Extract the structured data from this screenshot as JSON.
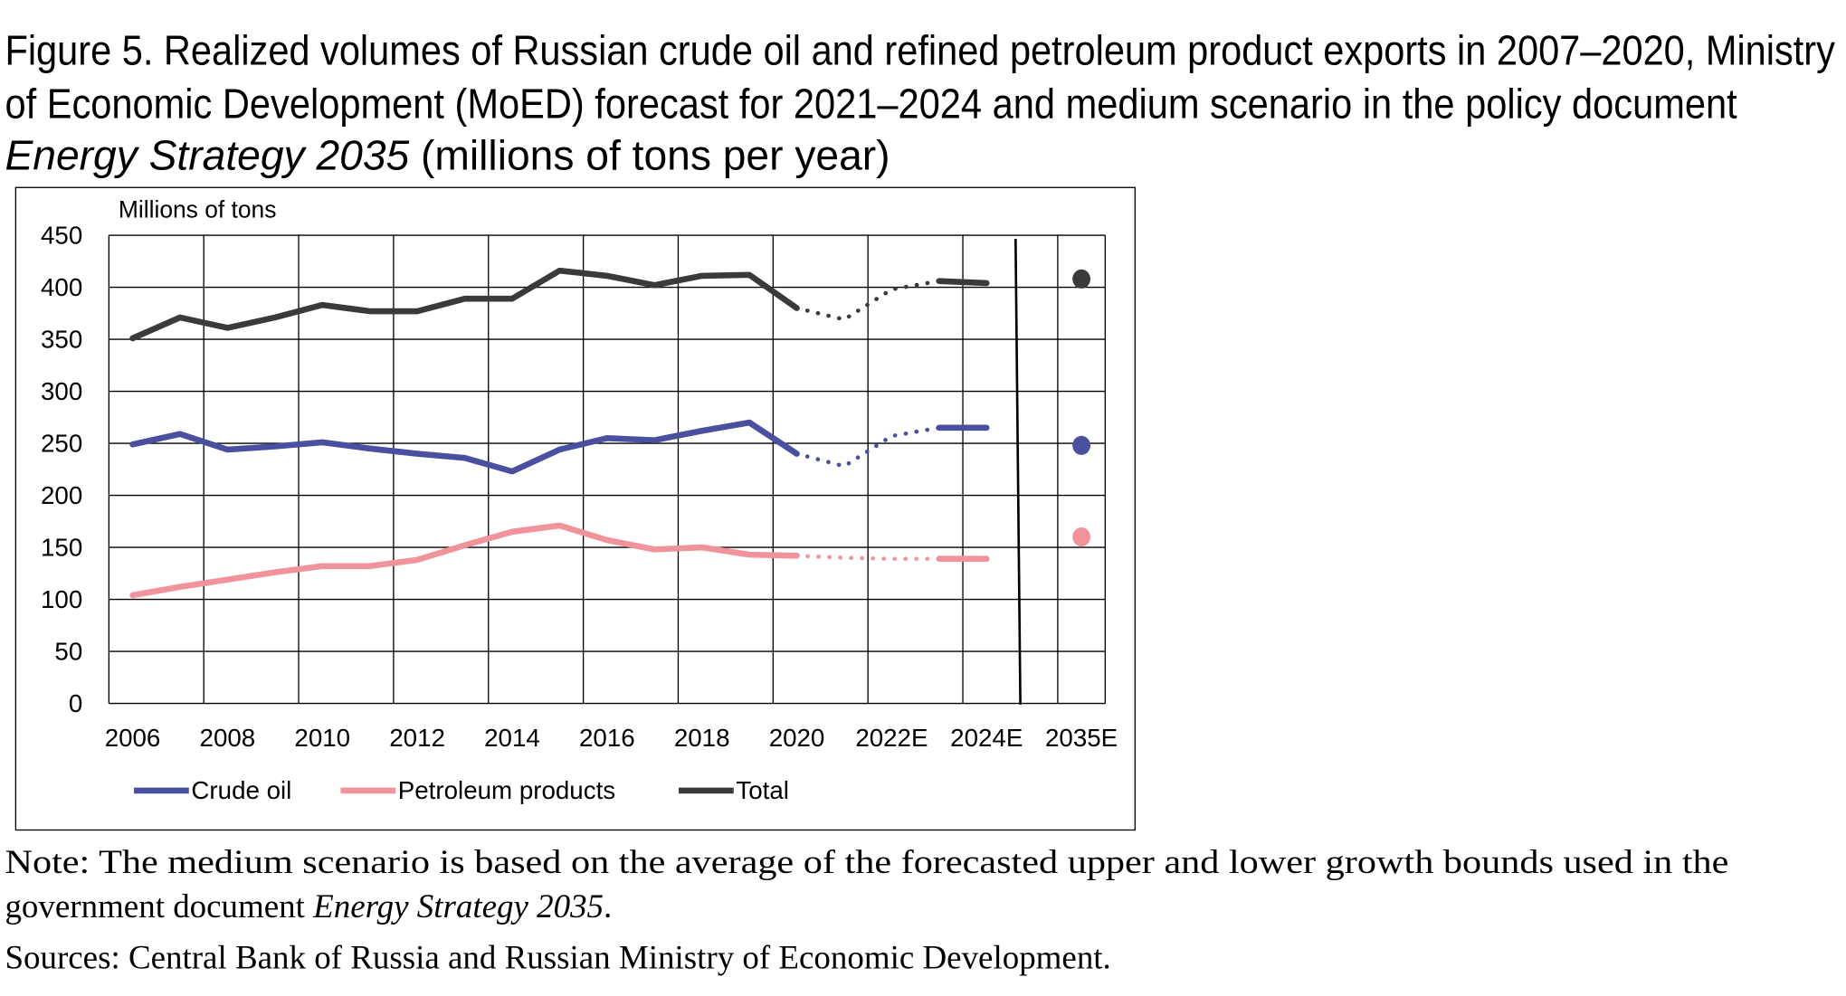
{
  "title": {
    "line1": "Figure 5. Realized volumes of Russian crude oil and refined petroleum product exports in 2007–2020, Ministry",
    "line2": "of Economic Development (MoED) forecast for 2021–2024 and medium scenario in the policy document",
    "line3_italic": "Energy Strategy 2035",
    "line3_rest": " (millions of tons per year)"
  },
  "notes": {
    "note_line1": "Note: The medium scenario is based on the average of the forecasted upper and lower growth bounds used in the",
    "note_line2_a": "government document ",
    "note_line2_italic": "Energy Strategy 2035",
    "note_line2_b": ".",
    "sources": "Sources: Central Bank of Russia and Russian Ministry of Economic Development."
  },
  "chart_data": {
    "type": "line",
    "ylabel": "Millions of tons",
    "ylim": [
      0,
      450
    ],
    "yticks": [
      "0",
      "50",
      "100",
      "150",
      "200",
      "250",
      "300",
      "350",
      "400",
      "450"
    ],
    "categories": [
      "2006",
      "2007",
      "2008",
      "2009",
      "2010",
      "2011",
      "2012",
      "2013",
      "2014",
      "2015",
      "2016",
      "2017",
      "2018",
      "2019",
      "2020",
      "2021E",
      "2022E",
      "2023E",
      "2024E",
      "",
      "2035E"
    ],
    "tick_labels": [
      "2006",
      "2008",
      "2010",
      "2012",
      "2014",
      "2016",
      "2018",
      "2020",
      "2022E",
      "2024E",
      "2035E"
    ],
    "grid": true,
    "legend_position": "bottom",
    "forecast_dotted_range": [
      "2020",
      "2023E"
    ],
    "series": [
      {
        "name": "Crude oil",
        "color": "#4a4fa0",
        "values": [
          249,
          259,
          244,
          247,
          251,
          245,
          240,
          236,
          223,
          244,
          255,
          253,
          262,
          270,
          240,
          228,
          257,
          265,
          265,
          null,
          248
        ]
      },
      {
        "name": "Petroleum products",
        "color": "#f0939a",
        "values": [
          104,
          112,
          119,
          126,
          132,
          132,
          138,
          152,
          165,
          171,
          157,
          148,
          150,
          143,
          142,
          140,
          139,
          139,
          139,
          null,
          160
        ]
      },
      {
        "name": "Total",
        "color": "#3a3a3a",
        "values": [
          351,
          371,
          361,
          371,
          383,
          377,
          377,
          389,
          389,
          416,
          411,
          402,
          411,
          412,
          380,
          369,
          398,
          406,
          404,
          null,
          408
        ]
      }
    ]
  }
}
